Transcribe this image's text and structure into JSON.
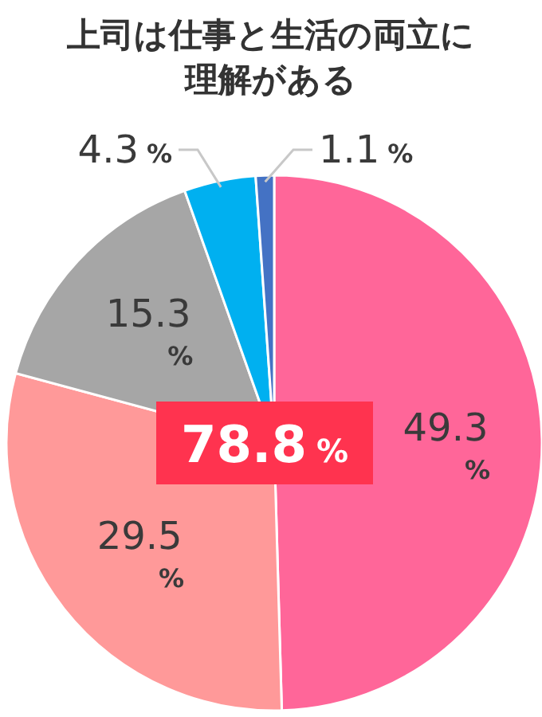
{
  "chart_data": {
    "type": "pie",
    "title": "上司は仕事と生活の両立に理解がある",
    "categories": [
      null,
      null,
      null,
      null,
      null
    ],
    "values": [
      49.3,
      29.5,
      15.3,
      4.3,
      1.1
    ],
    "colors": [
      "#ff6699",
      "#ff9999",
      "#a6a6a6",
      "#00b0f0",
      "#4472c4"
    ],
    "value_labels": [
      "49.3 %",
      "29.5 %",
      "15.3 %",
      "4.3 %",
      "1.1 %"
    ],
    "annotations": [
      "78.8 %"
    ]
  }
}
